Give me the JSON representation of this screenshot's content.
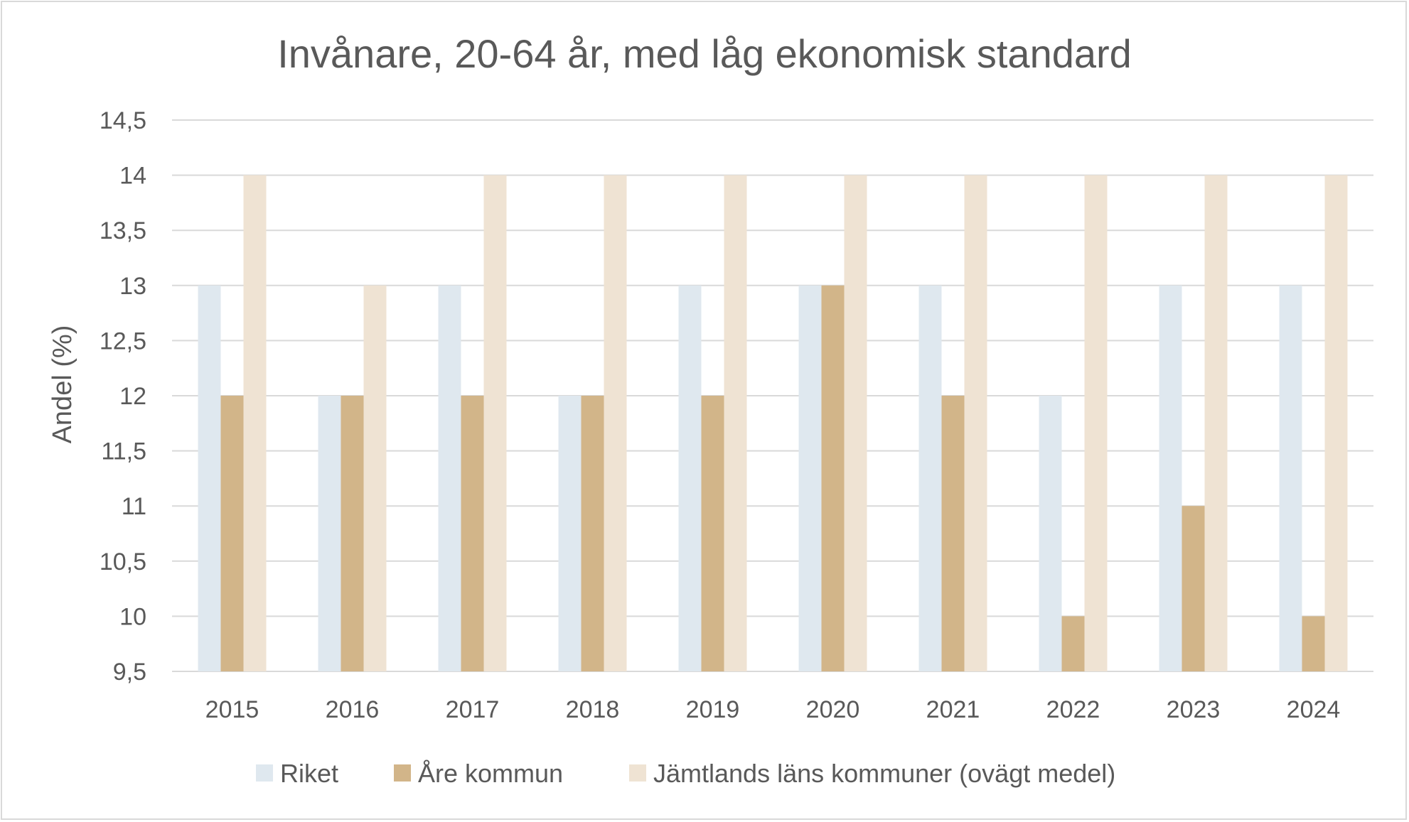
{
  "chart_data": {
    "type": "bar",
    "title": "Invånare, 20-64 år, med låg ekonomisk standard",
    "ylabel": "Andel (%)",
    "xlabel": "",
    "categories": [
      "2015",
      "2016",
      "2017",
      "2018",
      "2019",
      "2020",
      "2021",
      "2022",
      "2023",
      "2024"
    ],
    "series": [
      {
        "name": "Riket",
        "color": "#dfe8ef",
        "values": [
          13,
          12,
          13,
          12,
          13,
          13,
          13,
          12,
          13,
          13
        ]
      },
      {
        "name": "Åre kommun",
        "color": "#d2b589",
        "values": [
          12,
          12,
          12,
          12,
          12,
          13,
          12,
          10,
          11,
          10
        ]
      },
      {
        "name": "Jämtlands läns kommuner (ovägt medel)",
        "color": "#efe3d3",
        "values": [
          14,
          13,
          14,
          14,
          14,
          14,
          14,
          14,
          14,
          14
        ]
      }
    ],
    "ylim": [
      9.5,
      14.5
    ],
    "yticks": [
      "9,5",
      "10",
      "10,5",
      "11",
      "11,5",
      "12",
      "12,5",
      "13",
      "13,5",
      "14",
      "14,5"
    ],
    "grid": true,
    "legend_position": "bottom"
  }
}
